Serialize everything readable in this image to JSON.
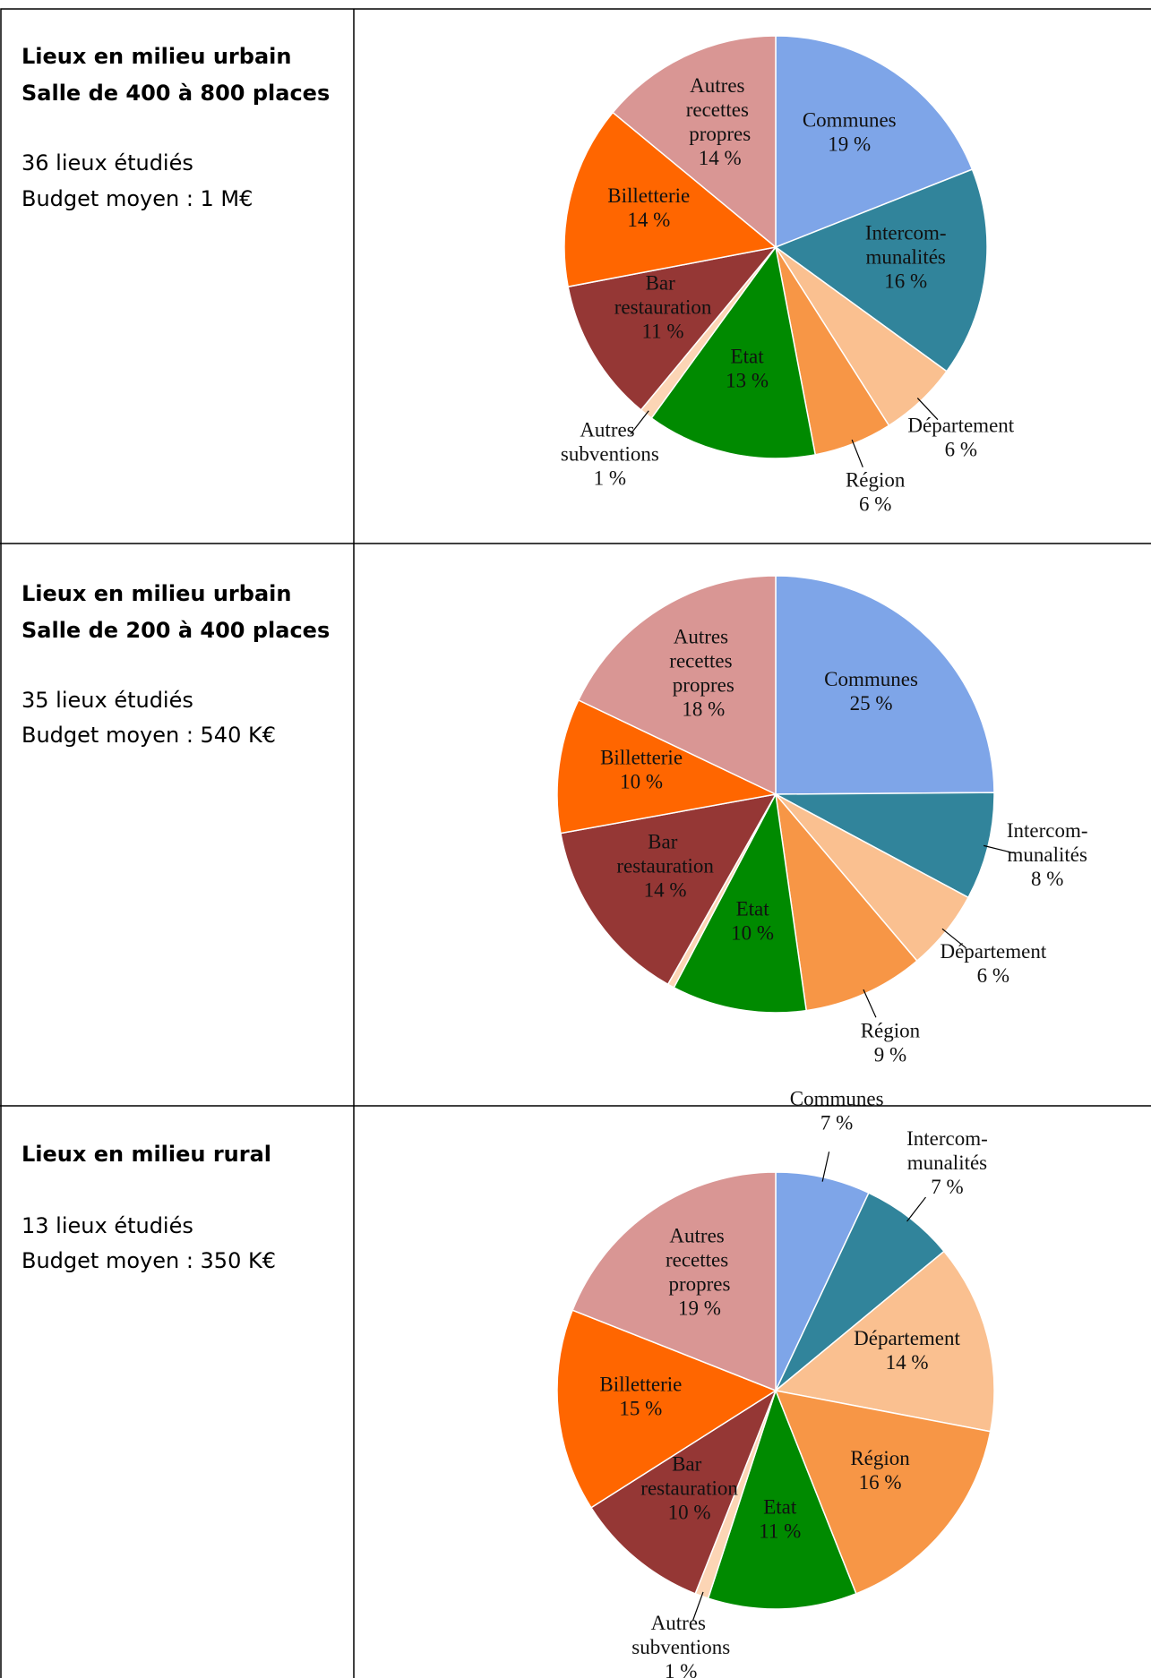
{
  "table": {
    "rows": [
      {
        "heading": [
          "Lieux en milieu urbain",
          "Salle de 400 à 800 places"
        ],
        "lines": [
          "36 lieux étudiés",
          "Budget moyen : 1 M€"
        ]
      },
      {
        "heading": [
          "Lieux en milieu urbain",
          "Salle de 200 à 400 places"
        ],
        "lines": [
          "35 lieux étudiés",
          "Budget moyen : 540 K€"
        ]
      },
      {
        "heading": [
          "Lieux en milieu rural"
        ],
        "lines": [
          "13 lieux étudiés",
          "Budget moyen : 350 K€"
        ]
      }
    ]
  },
  "chart_data": [
    {
      "type": "pie",
      "categories": [
        "Communes",
        "Intercom-munalités",
        "Département",
        "Région",
        "Etat",
        "Autres subventions",
        "Bar restauration",
        "Billetterie",
        "Autres recettes propres"
      ],
      "values": [
        19,
        16,
        6,
        6,
        13,
        1,
        11,
        14,
        14
      ],
      "value_labels": [
        "19 %",
        "16 %",
        "6 %",
        "6 %",
        "13 %",
        "1 %",
        "11 %",
        "14 %",
        "14 %"
      ],
      "colors": [
        "#7ea5e8",
        "#31849b",
        "#fac090",
        "#f79646",
        "#008a00",
        "#fcd5b5",
        "#953735",
        "#ff6600",
        "#d99694"
      ]
    },
    {
      "type": "pie",
      "categories": [
        "Communes",
        "Intercom-munalités",
        "Département",
        "Région",
        "Etat",
        null,
        "Bar restauration",
        "Billetterie",
        "Autres recettes propres"
      ],
      "values": [
        25,
        8,
        6,
        9,
        10,
        0.5,
        14,
        10,
        18
      ],
      "value_labels": [
        "25 %",
        "8 %",
        "6 %",
        "9 %",
        "10 %",
        null,
        "14 %",
        "10 %",
        "18 %"
      ],
      "colors": [
        "#7ea5e8",
        "#31849b",
        "#fac090",
        "#f79646",
        "#008a00",
        "#fcd5b5",
        "#953735",
        "#ff6600",
        "#d99694"
      ]
    },
    {
      "type": "pie",
      "categories": [
        "Communes",
        "Intercom-munalités",
        "Département",
        "Région",
        "Etat",
        "Autres subventions",
        "Bar restauration",
        "Billetterie",
        "Autres recettes propres"
      ],
      "values": [
        7,
        7,
        14,
        16,
        11,
        1,
        10,
        15,
        19
      ],
      "value_labels": [
        "7 %",
        "7 %",
        "14 %",
        "16 %",
        "11 %",
        "1 %",
        "10 %",
        "15 %",
        "19 %"
      ],
      "colors": [
        "#7ea5e8",
        "#31849b",
        "#fac090",
        "#f79646",
        "#008a00",
        "#fcd5b5",
        "#953735",
        "#ff6600",
        "#d99694"
      ]
    }
  ]
}
